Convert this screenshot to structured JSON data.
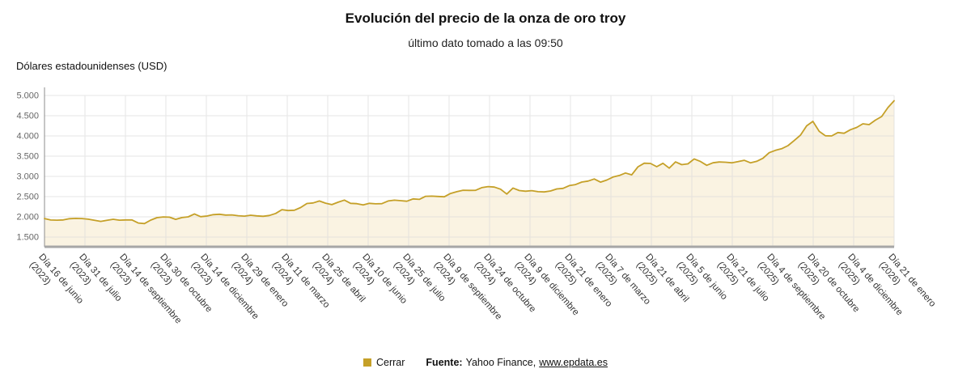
{
  "header": {
    "title": "Evolución del precio de la onza de oro troy",
    "subtitle": "último dato tomado a las 09:50"
  },
  "axes": {
    "y_title": "Dólares estadounidenses (USD)"
  },
  "legend": {
    "series": "Cerrar",
    "source_label": "Fuente:",
    "source_name": "Yahoo Finance,",
    "source_link": "www.epdata.es"
  },
  "colors": {
    "line": "#C5A028",
    "area": "#FAF3E2",
    "grid": "#D9D9D9",
    "axis_left": "#8C8C8C",
    "axis_bottom": "#A6A6A6",
    "tick_text": "#666666"
  },
  "chart_data": {
    "type": "area",
    "title": "Evolución del precio de la onza de oro troy",
    "series_name": "Cerrar",
    "xlabel": "",
    "ylabel": "Dólares estadounidenses (USD)",
    "ylim": [
      1500,
      5000
    ],
    "grid": true,
    "legend_position": "bottom",
    "y_ticks": [
      1500,
      2000,
      2500,
      3000,
      3500,
      4000,
      4500,
      5000
    ],
    "y_tick_labels": [
      "1.500",
      "2.000",
      "2.500",
      "3.000",
      "3.500",
      "4.000",
      "4.500",
      "5.000"
    ],
    "x_tick_labels": [
      "Día 16 de junio (2023)",
      "Día 31 de julio (2023)",
      "Día 14 de septiembre (2023)",
      "Día 30 de octubre (2023)",
      "Día 14 de diciembre (2023)",
      "Día 29 de enero (2024)",
      "Día 11 de marzo (2024)",
      "Día 25 de abril (2024)",
      "Día 10 de junio (2024)",
      "Día 25 de julio (2024)",
      "Día 9 de septiembre (2024)",
      "Día 24 de octubre (2024)",
      "Día 9 de diciembre (2024)",
      "Día 21 de enero (2025)",
      "Día 7 de marzo (2025)",
      "Día 21 de abril (2025)",
      "Día 5 de junio (2025)",
      "Día 21 de julio (2025)",
      "Día 4 de septiembre (2025)",
      "Día 20 de octubre (2025)",
      "Día 4 de diciembre (2025)",
      "Día 21 de enero (2026)"
    ],
    "values": [
      1958,
      1921,
      1919,
      1925,
      1955,
      1962,
      1959,
      1942,
      1913,
      1889,
      1915,
      1940,
      1919,
      1924,
      1925,
      1848,
      1833,
      1920,
      1980,
      1998,
      1992,
      1938,
      1981,
      2000,
      2072,
      2004,
      2020,
      2053,
      2063,
      2045,
      2049,
      2029,
      2018,
      2040,
      2024,
      2013,
      2035,
      2083,
      2179,
      2156,
      2165,
      2230,
      2330,
      2344,
      2392,
      2338,
      2302,
      2361,
      2415,
      2334,
      2327,
      2293,
      2333,
      2322,
      2327,
      2392,
      2411,
      2400,
      2387,
      2443,
      2431,
      2508,
      2512,
      2503,
      2497,
      2578,
      2622,
      2658,
      2654,
      2657,
      2722,
      2748,
      2736,
      2685,
      2563,
      2712,
      2650,
      2633,
      2648,
      2622,
      2617,
      2640,
      2690,
      2703,
      2771,
      2798,
      2861,
      2883,
      2936,
      2858,
      2909,
      2984,
      3022,
      3085,
      3038,
      3238,
      3327,
      3319,
      3240,
      3325,
      3203,
      3358,
      3289,
      3311,
      3432,
      3368,
      3274,
      3337,
      3356,
      3350,
      3337,
      3363,
      3398,
      3336,
      3372,
      3448,
      3587,
      3643,
      3685,
      3760,
      3887,
      4018,
      4251,
      4359,
      4113,
      4003,
      4000,
      4084,
      4066,
      4154,
      4210,
      4300,
      4280,
      4390,
      4480,
      4700,
      4870
    ]
  }
}
